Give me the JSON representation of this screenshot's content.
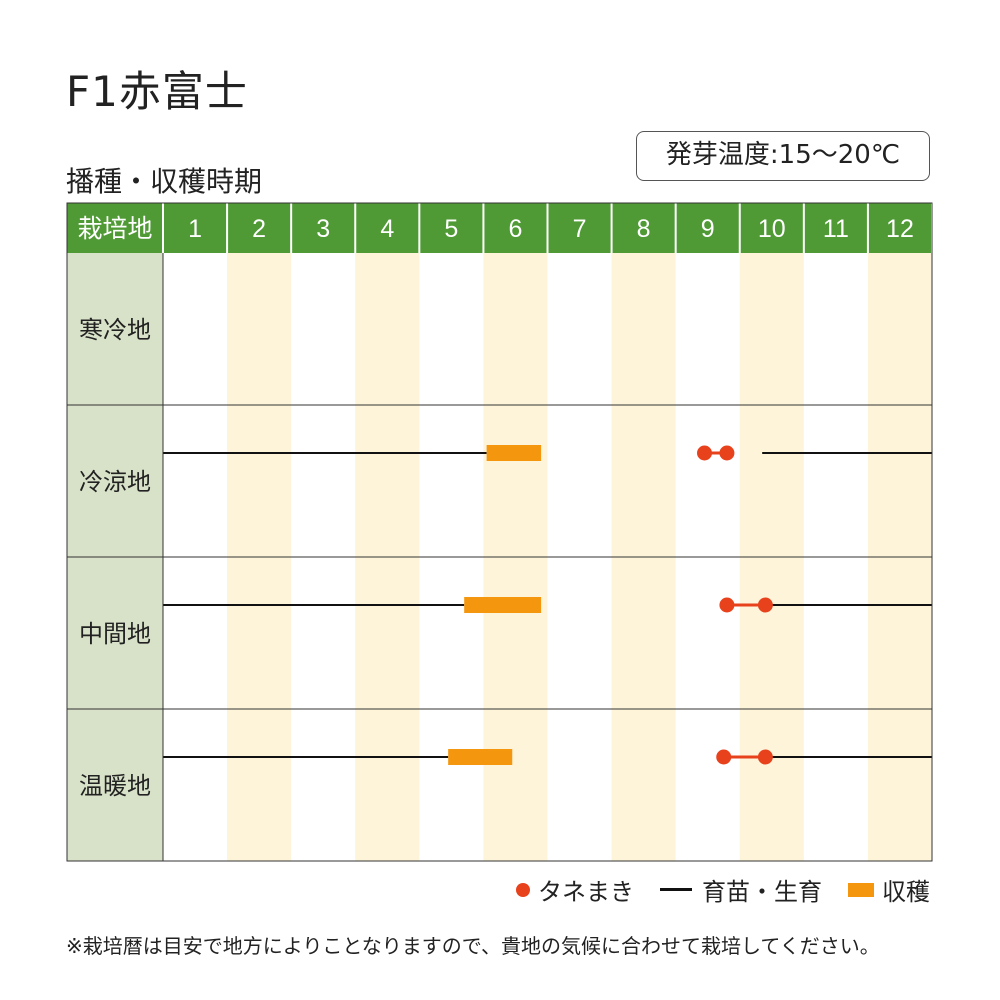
{
  "header": {
    "title": "F1赤富士",
    "subtitle": "播種・収穫時期",
    "badge": "発芽温度:15～20℃"
  },
  "legend": {
    "sowing": "タネまき",
    "growing": "育苗・生育",
    "harvest": "収穫"
  },
  "footer": {
    "note": "※栽培暦は目安で地方によりことなりますので、貴地の気候に合わせて栽培してください。"
  },
  "colors": {
    "header_green": "#4f9a35",
    "label_bg": "#d8e2c8",
    "stripe": "#fdf4da",
    "sowing": "#e8421c",
    "harvest": "#f5960f",
    "line": "#111111"
  },
  "chart_data": {
    "type": "timeline",
    "header_label": "栽培地",
    "months": [
      "1",
      "2",
      "3",
      "4",
      "5",
      "6",
      "7",
      "8",
      "9",
      "10",
      "11",
      "12"
    ],
    "rows": [
      {
        "region": "寒冷地",
        "growing": [],
        "harvest": null,
        "sowing": null
      },
      {
        "region": "冷涼地",
        "growing": [
          [
            0,
            5.05
          ],
          [
            9.35,
            12
          ]
        ],
        "harvest": [
          5.05,
          5.9
        ],
        "sowing": [
          8.45,
          8.8
        ]
      },
      {
        "region": "中間地",
        "growing": [
          [
            0,
            4.7
          ],
          [
            9.4,
            12
          ]
        ],
        "harvest": [
          4.7,
          5.9
        ],
        "sowing": [
          8.8,
          9.4
        ]
      },
      {
        "region": "温暖地",
        "growing": [
          [
            0,
            4.45
          ],
          [
            9.4,
            12
          ]
        ],
        "harvest": [
          4.45,
          5.45
        ],
        "sowing": [
          8.75,
          9.4
        ]
      }
    ]
  }
}
